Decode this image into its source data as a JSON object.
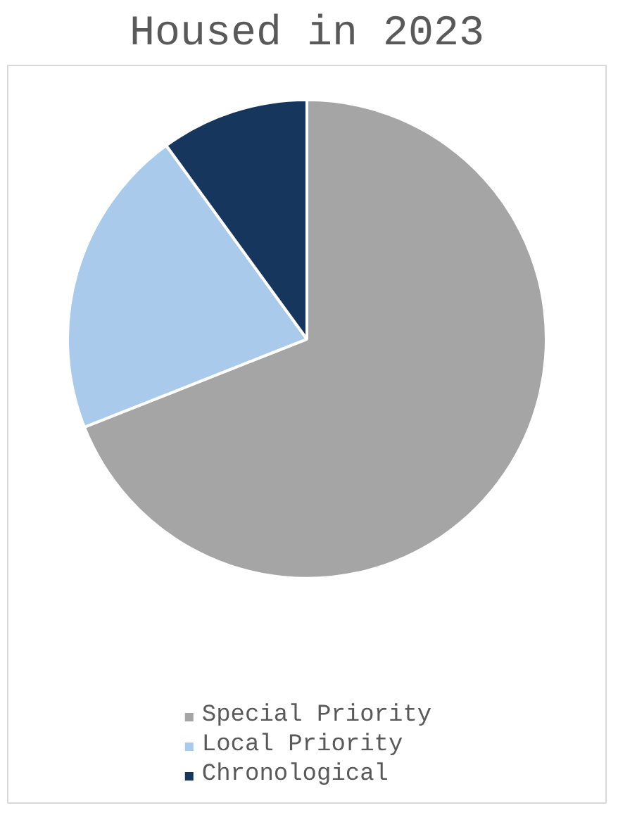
{
  "chart_data": {
    "type": "pie",
    "title": "Housed in 2023",
    "categories": [
      "Special Priority",
      "Local Priority",
      "Chronological"
    ],
    "values": [
      69,
      21,
      10
    ],
    "colors": [
      "#a5a5a5",
      "#a9caeb",
      "#17365d"
    ],
    "legend": "bottom"
  }
}
